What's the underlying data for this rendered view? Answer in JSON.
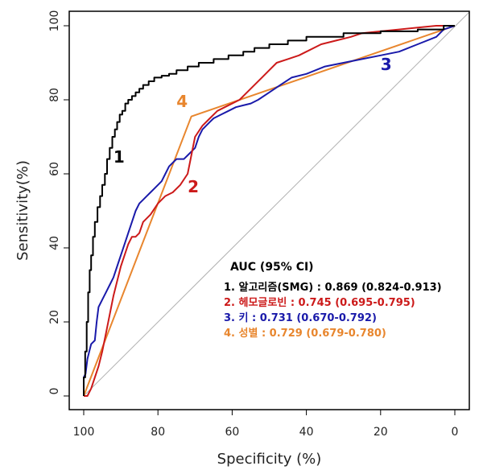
{
  "chart_data": {
    "type": "line",
    "title": "",
    "xlabel": "Specificity (%)",
    "ylabel": "Sensitivity(%)",
    "xlim": [
      100,
      0
    ],
    "ylim": [
      0,
      100
    ],
    "x_ticks": [
      "100",
      "80",
      "60",
      "40",
      "20",
      "0"
    ],
    "y_ticks": [
      "0",
      "20",
      "40",
      "60",
      "80",
      "100"
    ],
    "grid": false,
    "reference_line": {
      "from": [
        100,
        0
      ],
      "to": [
        0,
        100
      ],
      "color": "#b0b0b0"
    },
    "series": [
      {
        "name": "1",
        "label": "1",
        "color": "#000000",
        "x": [
          100,
          100,
          99.6,
          99.6,
          99.2,
          99.2,
          98.8,
          98.8,
          98.4,
          98.4,
          98,
          98,
          97.5,
          97.5,
          97,
          97,
          96.3,
          96.3,
          95.6,
          95.6,
          95,
          95,
          94.3,
          94.3,
          93.7,
          93.7,
          93,
          93,
          92.3,
          92.3,
          91.6,
          91.6,
          91,
          91,
          90.3,
          90.3,
          89.6,
          89.6,
          88.8,
          88.8,
          88,
          88,
          87,
          87,
          86,
          86,
          85,
          85,
          84,
          84,
          82.5,
          82.5,
          81,
          81,
          79,
          79,
          77,
          77,
          75,
          75,
          72,
          72,
          69,
          69,
          65,
          65,
          61,
          61,
          57,
          57,
          54,
          54,
          50,
          50,
          45,
          45,
          40,
          40,
          30,
          30,
          20,
          20,
          10,
          10,
          3,
          3,
          0
        ],
        "y": [
          0,
          5,
          5,
          12,
          12,
          20,
          20,
          28,
          28,
          34,
          34,
          38,
          38,
          43,
          43,
          47,
          47,
          51,
          51,
          54,
          54,
          57,
          57,
          60,
          60,
          64,
          64,
          67,
          67,
          70,
          70,
          72,
          72,
          74,
          74,
          76,
          76,
          77,
          77,
          79,
          79,
          80,
          80,
          81,
          81,
          82,
          82,
          83,
          83,
          84,
          84,
          85,
          85,
          86,
          86,
          86.5,
          86.5,
          87,
          87,
          88,
          88,
          89,
          89,
          90,
          90,
          91,
          91,
          92,
          92,
          93,
          93,
          94,
          94,
          95,
          95,
          96,
          96,
          97,
          97,
          98,
          98,
          98.5,
          98.5,
          99,
          99,
          100,
          100
        ]
      },
      {
        "name": "2",
        "label": "2",
        "color": "#cc1a1a",
        "x": [
          100,
          99,
          98,
          97,
          96,
          95,
          94,
          93,
          92,
          91,
          90,
          89,
          88,
          87,
          86,
          85,
          84,
          82,
          80,
          78,
          76,
          74,
          72,
          71,
          70,
          68,
          66,
          64,
          62,
          60,
          58,
          56,
          54,
          52,
          50,
          48,
          45,
          42,
          40,
          36,
          32,
          28,
          25,
          20,
          15,
          10,
          5,
          0
        ],
        "y": [
          0,
          0,
          2,
          5,
          8,
          12,
          17,
          22,
          27,
          31,
          35,
          38,
          41,
          43,
          43,
          44,
          47,
          49,
          52,
          54,
          55,
          57,
          60,
          65,
          70,
          73,
          75,
          77,
          78,
          79,
          80,
          82,
          84,
          86,
          88,
          90,
          91,
          92,
          93,
          95,
          96,
          97,
          98,
          98.5,
          99,
          99.5,
          100,
          100
        ]
      },
      {
        "name": "3",
        "label": "3",
        "color": "#1a1aaa",
        "x": [
          100,
          100,
          99.5,
          99,
          98.5,
          98,
          97,
          96.5,
          96,
          95.5,
          95,
          94,
          93,
          92,
          91,
          90,
          89,
          88,
          87,
          86,
          85,
          84,
          83,
          82,
          81,
          80,
          79,
          78,
          77,
          76,
          75,
          74,
          73,
          72,
          71,
          70,
          69,
          68,
          67,
          66,
          65,
          63,
          61,
          59,
          57,
          55,
          53,
          50,
          47,
          44,
          40,
          35,
          30,
          25,
          20,
          15,
          10,
          5,
          3,
          0
        ],
        "y": [
          0,
          5,
          6,
          10,
          12,
          14,
          15,
          20,
          24,
          25,
          26,
          28,
          30,
          32,
          35,
          38,
          41,
          44,
          47,
          50,
          52,
          53,
          54,
          55,
          56,
          57,
          58,
          60,
          62,
          63,
          64,
          64,
          64,
          65,
          66,
          67,
          70,
          72,
          73,
          74,
          75,
          76,
          77,
          78,
          78.5,
          79,
          80,
          82,
          84,
          86,
          87,
          89,
          90,
          91,
          92,
          93,
          95,
          97,
          99,
          100
        ]
      },
      {
        "name": "4",
        "label": "4",
        "color": "#e8862e",
        "x": [
          100,
          71,
          0
        ],
        "y": [
          0,
          75.5,
          100
        ]
      }
    ],
    "legend": {
      "title": "AUC (95% CI)",
      "placement": "bottom-right",
      "entries": [
        {
          "text": "1. 알고리즘(SMG) : 0.869 (0.824-0.913)",
          "color": "#000000"
        },
        {
          "text": "2. 헤모글로빈 : 0.745 (0.695-0.795)",
          "color": "#cc1a1a"
        },
        {
          "text": "3. 키 : 0.731 (0.670-0.792)",
          "color": "#1a1aaa"
        },
        {
          "text": "4. 성별 : 0.729 (0.679-0.780)",
          "color": "#e8862e"
        }
      ]
    }
  }
}
